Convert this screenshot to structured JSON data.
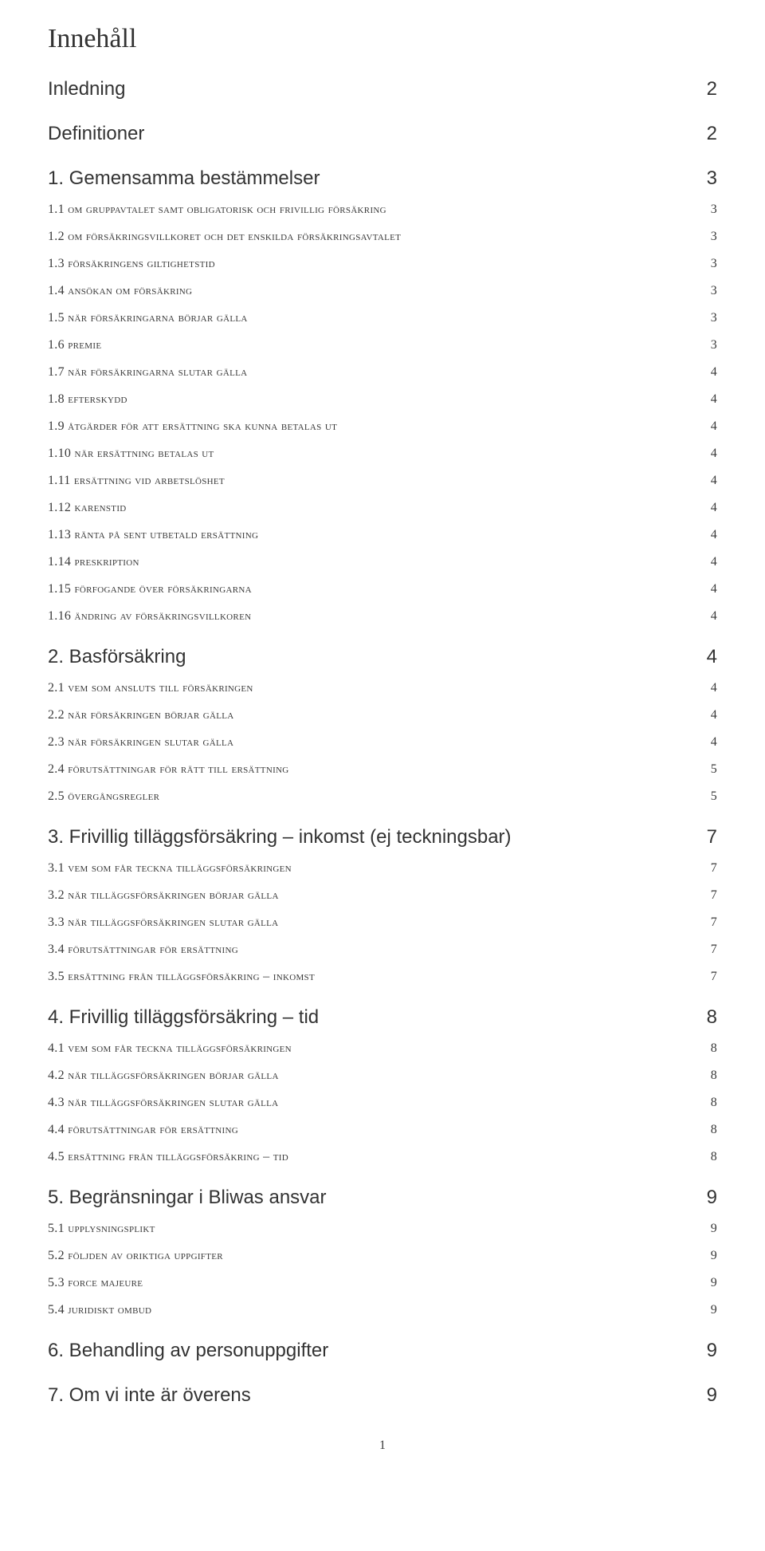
{
  "title": "Innehåll",
  "pageNumber": "1",
  "toc": [
    {
      "level": 1,
      "label": "Inledning",
      "page": "2"
    },
    {
      "level": 1,
      "label": "Definitioner",
      "page": "2"
    },
    {
      "level": 1,
      "label": "1. Gemensamma bestämmelser",
      "page": "3"
    },
    {
      "level": 2,
      "label": "1.1 om gruppavtalet samt obligatorisk och frivillig försäkring",
      "page": "3"
    },
    {
      "level": 2,
      "label": "1.2 om försäkringsvillkoret och det enskilda försäkringsavtalet",
      "page": "3"
    },
    {
      "level": 2,
      "label": "1.3 försäkringens giltighetstid",
      "page": "3"
    },
    {
      "level": 2,
      "label": "1.4 ansökan om försäkring",
      "page": "3"
    },
    {
      "level": 2,
      "label": "1.5 när försäkringarna börjar gälla",
      "page": "3"
    },
    {
      "level": 2,
      "label": "1.6 premie",
      "page": "3"
    },
    {
      "level": 2,
      "label": "1.7 när försäkringarna slutar gälla",
      "page": "4"
    },
    {
      "level": 2,
      "label": "1.8 efterskydd",
      "page": "4"
    },
    {
      "level": 2,
      "label": "1.9 åtgärder för att ersättning ska kunna betalas ut",
      "page": "4"
    },
    {
      "level": 2,
      "label": "1.10 när ersättning betalas ut",
      "page": "4"
    },
    {
      "level": 2,
      "label": "1.11 ersättning vid arbetslöshet",
      "page": "4"
    },
    {
      "level": 2,
      "label": "1.12 karenstid",
      "page": "4"
    },
    {
      "level": 2,
      "label": "1.13 ränta på sent utbetald ersättning",
      "page": "4"
    },
    {
      "level": 2,
      "label": "1.14 preskription",
      "page": "4"
    },
    {
      "level": 2,
      "label": "1.15 förfogande över försäkringarna",
      "page": "4"
    },
    {
      "level": 2,
      "label": "1.16 ändring av försäkringsvillkoren",
      "page": "4"
    },
    {
      "level": 1,
      "label": "2. Basförsäkring",
      "page": "4"
    },
    {
      "level": 2,
      "label": "2.1 vem som ansluts till försäkringen",
      "page": "4"
    },
    {
      "level": 2,
      "label": "2.2 när försäkringen börjar gälla",
      "page": "4"
    },
    {
      "level": 2,
      "label": "2.3 när försäkringen slutar gälla",
      "page": "4"
    },
    {
      "level": 2,
      "label": "2.4 förutsättningar för rätt till ersättning",
      "page": "5"
    },
    {
      "level": 2,
      "label": "2.5 övergångsregler",
      "page": "5"
    },
    {
      "level": 1,
      "label": "3. Frivillig tilläggsförsäkring – inkomst (ej teckningsbar)",
      "page": "7"
    },
    {
      "level": 2,
      "label": "3.1 vem som får teckna tilläggsförsäkringen",
      "page": "7"
    },
    {
      "level": 2,
      "label": "3.2 när tilläggsförsäkringen börjar gälla",
      "page": "7"
    },
    {
      "level": 2,
      "label": "3.3 när tilläggsförsäkringen slutar gälla",
      "page": "7"
    },
    {
      "level": 2,
      "label": "3.4 förutsättningar för ersättning",
      "page": "7"
    },
    {
      "level": 2,
      "label": "3.5 ersättning från tilläggsförsäkring – inkomst",
      "page": "7"
    },
    {
      "level": 1,
      "label": "4. Frivillig tilläggsförsäkring – tid",
      "page": "8"
    },
    {
      "level": 2,
      "label": "4.1 vem som får teckna tilläggsförsäkringen",
      "page": "8"
    },
    {
      "level": 2,
      "label": "4.2 när tilläggsförsäkringen börjar gälla",
      "page": "8"
    },
    {
      "level": 2,
      "label": "4.3 när tilläggsförsäkringen slutar gälla",
      "page": "8"
    },
    {
      "level": 2,
      "label": "4.4 förutsättningar för ersättning",
      "page": "8"
    },
    {
      "level": 2,
      "label": "4.5 ersättning från tilläggsförsäkring – tid",
      "page": "8"
    },
    {
      "level": 1,
      "label": "5. Begränsningar i Bliwas ansvar",
      "page": "9"
    },
    {
      "level": 2,
      "label": "5.1 upplysningsplikt",
      "page": "9"
    },
    {
      "level": 2,
      "label": "5.2 följden av oriktiga uppgifter",
      "page": "9"
    },
    {
      "level": 2,
      "label": "5.3 force majeure",
      "page": "9"
    },
    {
      "level": 2,
      "label": "5.4 juridiskt ombud",
      "page": "9"
    },
    {
      "level": 1,
      "label": "6. Behandling av personuppgifter",
      "page": "9"
    },
    {
      "level": 1,
      "label": "7. Om vi inte är överens",
      "page": "9"
    }
  ]
}
